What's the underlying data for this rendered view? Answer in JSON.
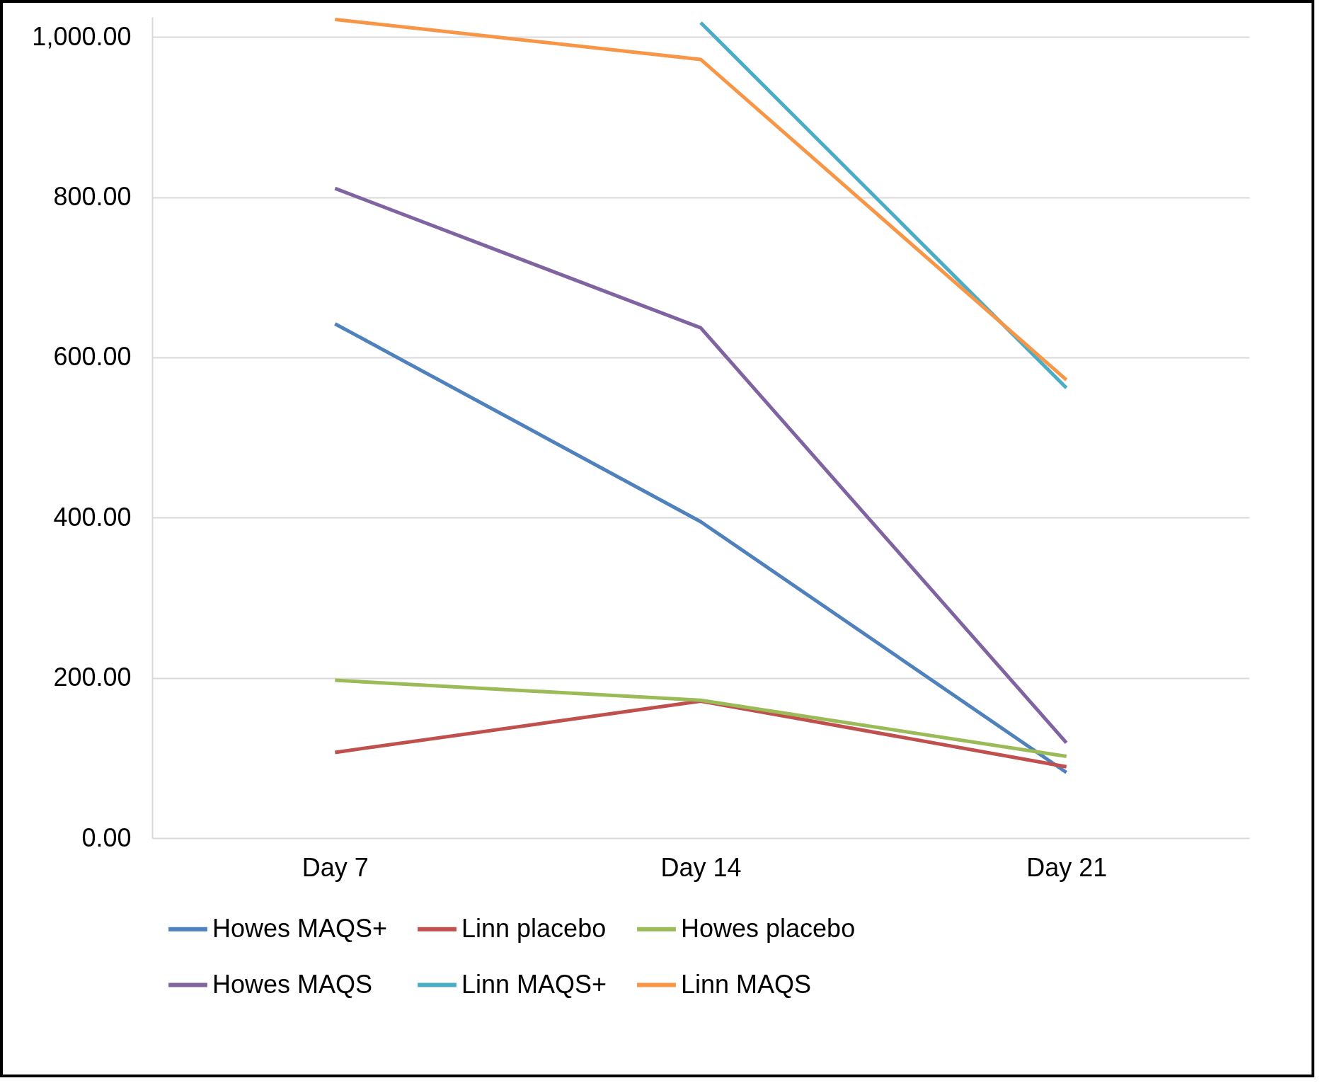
{
  "chart_data": {
    "type": "line",
    "categories": [
      "Day 7",
      "Day 14",
      "Day 21"
    ],
    "ylim": [
      0,
      1025
    ],
    "yticks": [
      {
        "value": 0,
        "label": "0.00"
      },
      {
        "value": 200,
        "label": "200.00"
      },
      {
        "value": 400,
        "label": "400.00"
      },
      {
        "value": 600,
        "label": "600.00"
      },
      {
        "value": 800,
        "label": "800.00"
      },
      {
        "value": 1000,
        "label": "1,000.00"
      }
    ],
    "grid": "y",
    "legend": "bottom",
    "marker": "none",
    "line_style": "solid",
    "series": [
      {
        "name": "Howes MAQS+",
        "color": "#4f81bd",
        "values": [
          642,
          395,
          82
        ]
      },
      {
        "name": "Linn placebo",
        "color": "#c0504d",
        "values": [
          107,
          171,
          89
        ]
      },
      {
        "name": "Howes placebo",
        "color": "#9bbb59",
        "values": [
          197,
          172,
          102
        ]
      },
      {
        "name": "Howes MAQS",
        "color": "#8064a2",
        "values": [
          811,
          637,
          119
        ]
      },
      {
        "name": "Linn MAQS+",
        "color": "#4bacc6",
        "values": [
          null,
          1018,
          562
        ]
      },
      {
        "name": "Linn MAQS",
        "color": "#f79646",
        "values": [
          1022,
          972,
          572
        ]
      }
    ]
  }
}
